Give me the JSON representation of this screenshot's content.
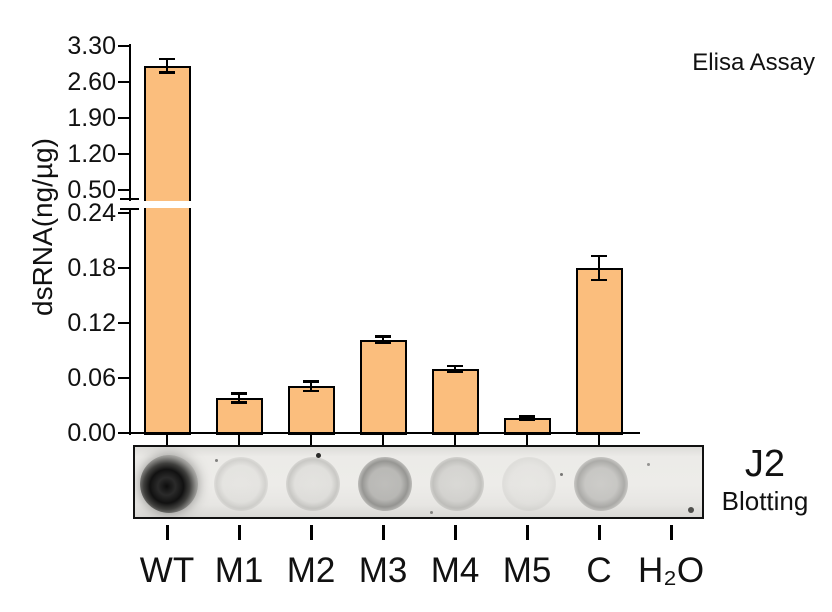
{
  "title": "Elisa Assay",
  "chart_data": {
    "type": "bar",
    "title": "Elisa Assay",
    "xlabel": "",
    "ylabel": "dsRNA(ng/µg)",
    "categories": [
      "WT",
      "M1",
      "M2",
      "M3",
      "M4",
      "M5",
      "C",
      "H₂O"
    ],
    "values": [
      2.92,
      0.038,
      0.051,
      0.102,
      0.07,
      0.016,
      0.18,
      0
    ],
    "errors": [
      0.13,
      0.005,
      0.005,
      0.003,
      0.003,
      0.002,
      0.013,
      0
    ],
    "bar_color": "#FBBE7D",
    "bar_border_color": "#000000",
    "grid": "off",
    "legend": "none",
    "axis_break": {
      "between": [
        0.24,
        0.5
      ]
    },
    "upper_axis_ticks": [
      0.5,
      1.2,
      1.9,
      2.6,
      3.3
    ],
    "lower_axis_ticks": [
      0.0,
      0.06,
      0.12,
      0.18,
      0.24
    ],
    "upper_axis_range": [
      0.29,
      3.3
    ],
    "lower_axis_range": [
      0.0,
      0.245
    ]
  },
  "blot": {
    "title": "J2",
    "subtitle": "Blotting",
    "dots": [
      {
        "category": "WT",
        "intensity": "very-strong"
      },
      {
        "category": "M1",
        "intensity": "faint-ring"
      },
      {
        "category": "M2",
        "intensity": "light-ring"
      },
      {
        "category": "M3",
        "intensity": "medium"
      },
      {
        "category": "M4",
        "intensity": "light"
      },
      {
        "category": "M5",
        "intensity": "very-faint"
      },
      {
        "category": "C",
        "intensity": "medium-light"
      },
      {
        "category": "H₂O",
        "intensity": "none"
      }
    ]
  }
}
